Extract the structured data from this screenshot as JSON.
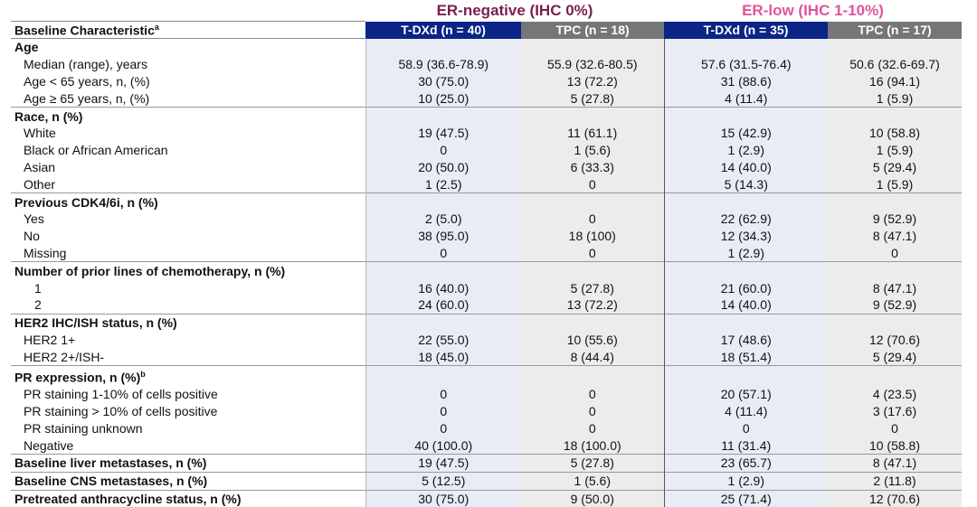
{
  "groups": [
    {
      "label": "ER-negative (IHC 0%)",
      "color": "#7a1f4c"
    },
    {
      "label": "ER-low (IHC 1-10%)",
      "color": "#e0549c"
    }
  ],
  "header": {
    "label": "Baseline Characteristic",
    "label_sup": "a",
    "cols": [
      "T-DXd (n = 40)",
      "TPC (n = 18)",
      "T-DXd (n = 35)",
      "TPC (n = 17)"
    ]
  },
  "rows": [
    {
      "label": "Age",
      "type": "head",
      "sep": false,
      "values": [
        "",
        "",
        "",
        ""
      ]
    },
    {
      "label": "Median (range), years",
      "type": "sub",
      "values": [
        "58.9 (36.6-78.9)",
        "55.9 (32.6-80.5)",
        "57.6 (31.5-76.4)",
        "50.6 (32.6-69.7)"
      ]
    },
    {
      "label": "Age < 65 years, n, (%)",
      "type": "sub",
      "values": [
        "30 (75.0)",
        "13 (72.2)",
        "31 (88.6)",
        "16 (94.1)"
      ]
    },
    {
      "label": "Age ≥ 65 years, n, (%)",
      "type": "sub",
      "values": [
        "10 (25.0)",
        "5 (27.8)",
        "4 (11.4)",
        "1 (5.9)"
      ]
    },
    {
      "label": "Race, n (%)",
      "type": "head",
      "sep": true,
      "values": [
        "",
        "",
        "",
        ""
      ]
    },
    {
      "label": "White",
      "type": "sub",
      "values": [
        "19 (47.5)",
        "11 (61.1)",
        "15 (42.9)",
        "10 (58.8)"
      ]
    },
    {
      "label": "Black or African American",
      "type": "sub",
      "values": [
        "0",
        "1 (5.6)",
        "1 (2.9)",
        "1 (5.9)"
      ]
    },
    {
      "label": "Asian",
      "type": "sub",
      "values": [
        "20 (50.0)",
        "6 (33.3)",
        "14 (40.0)",
        "5 (29.4)"
      ]
    },
    {
      "label": "Other",
      "type": "sub",
      "values": [
        "1 (2.5)",
        "0",
        "5 (14.3)",
        "1 (5.9)"
      ]
    },
    {
      "label": "Previous CDK4/6i, n (%)",
      "type": "head",
      "sep": true,
      "values": [
        "",
        "",
        "",
        ""
      ]
    },
    {
      "label": "Yes",
      "type": "sub",
      "values": [
        "2 (5.0)",
        "0",
        "22 (62.9)",
        "9 (52.9)"
      ]
    },
    {
      "label": "No",
      "type": "sub",
      "values": [
        "38 (95.0)",
        "18 (100)",
        "12 (34.3)",
        "8 (47.1)"
      ]
    },
    {
      "label": "Missing",
      "type": "sub",
      "values": [
        "0",
        "0",
        "1 (2.9)",
        "0"
      ]
    },
    {
      "label": "Number of prior lines of chemotherapy, n (%)",
      "type": "head",
      "sep": true,
      "values": [
        "",
        "",
        "",
        ""
      ]
    },
    {
      "label": "1",
      "type": "num",
      "values": [
        "16 (40.0)",
        "5 (27.8)",
        "21 (60.0)",
        "8 (47.1)"
      ]
    },
    {
      "label": "2",
      "type": "num",
      "values": [
        "24 (60.0)",
        "13 (72.2)",
        "14 (40.0)",
        "9 (52.9)"
      ]
    },
    {
      "label": "HER2 IHC/ISH status, n (%)",
      "type": "head",
      "sep": true,
      "values": [
        "",
        "",
        "",
        ""
      ]
    },
    {
      "label": "HER2 1+",
      "type": "sub",
      "values": [
        "22 (55.0)",
        "10 (55.6)",
        "17 (48.6)",
        "12 (70.6)"
      ]
    },
    {
      "label": "HER2 2+/ISH-",
      "type": "sub",
      "values": [
        "18 (45.0)",
        "8 (44.4)",
        "18 (51.4)",
        "5 (29.4)"
      ]
    },
    {
      "label": "PR expression, n (%)",
      "sup": "b",
      "type": "head",
      "sep": true,
      "values": [
        "",
        "",
        "",
        ""
      ]
    },
    {
      "label": "PR staining 1-10% of cells positive",
      "type": "sub",
      "values": [
        "0",
        "0",
        "20 (57.1)",
        "4 (23.5)"
      ]
    },
    {
      "label": "PR staining > 10% of cells positive",
      "type": "sub",
      "values": [
        "0",
        "0",
        "4 (11.4)",
        "3 (17.6)"
      ]
    },
    {
      "label": "PR staining unknown",
      "type": "sub",
      "values": [
        "0",
        "0",
        "0",
        "0"
      ]
    },
    {
      "label": "Negative",
      "type": "sub",
      "values": [
        "40 (100.0)",
        "18 (100.0)",
        "11 (31.4)",
        "10 (58.8)"
      ]
    },
    {
      "label": "Baseline liver metastases, n (%)",
      "type": "head",
      "sep": true,
      "values": [
        "19 (47.5)",
        "5 (27.8)",
        "23 (65.7)",
        "8 (47.1)"
      ]
    },
    {
      "label": "Baseline CNS metastases, n (%)",
      "type": "head",
      "sep": true,
      "values": [
        "5 (12.5)",
        "1 (5.6)",
        "1 (2.9)",
        "2 (11.8)"
      ]
    },
    {
      "label": "Pretreated anthracycline status, n (%)",
      "type": "head",
      "sep": true,
      "values": [
        "30 (75.0)",
        "9 (50.0)",
        "25 (71.4)",
        "12 (70.6)"
      ]
    }
  ]
}
